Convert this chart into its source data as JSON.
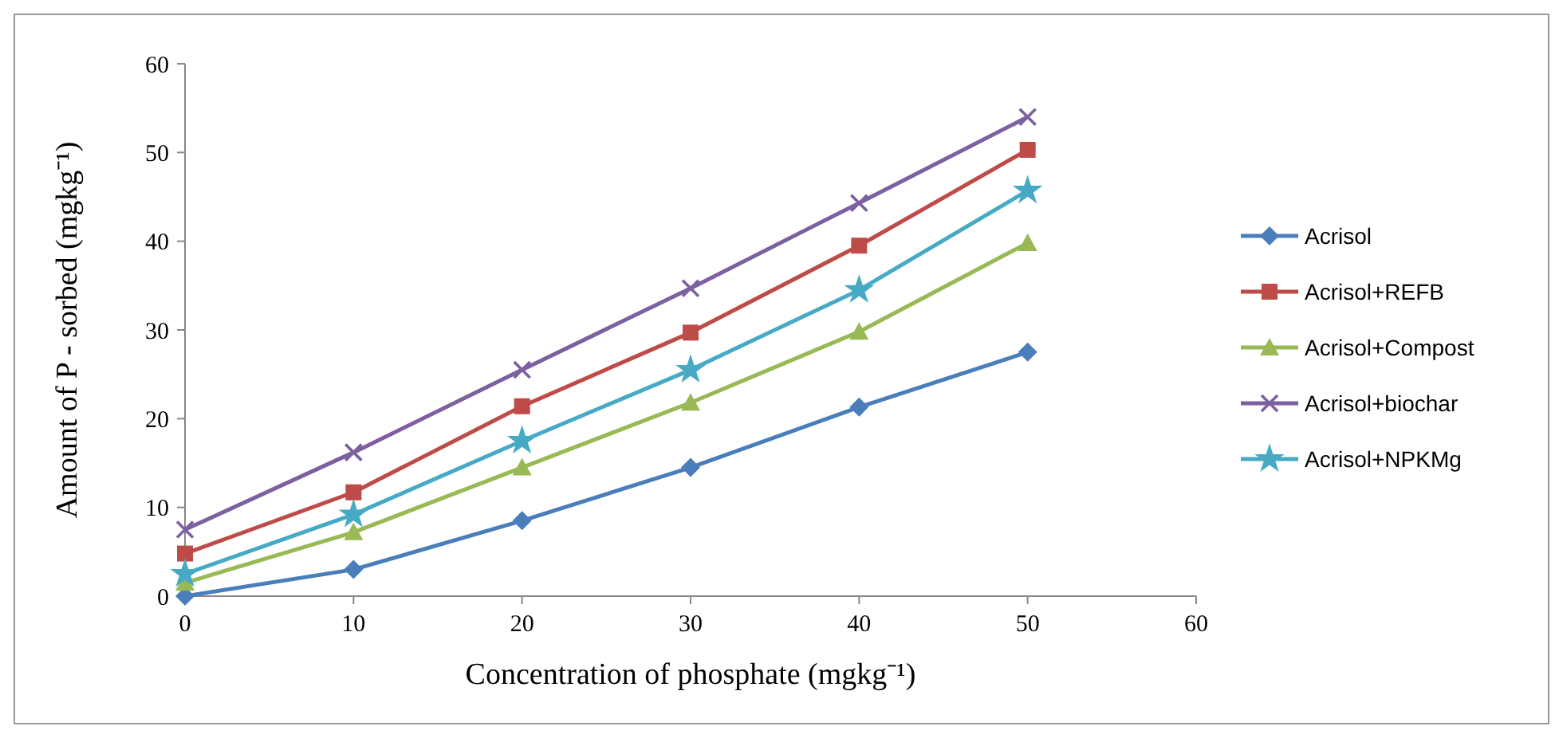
{
  "chart_data": {
    "type": "line",
    "xlabel": "Concentration of phosphate (mgkg⁻¹)",
    "ylabel": "Amount of P - sorbed (mgkg⁻¹)",
    "x": [
      0,
      10,
      20,
      30,
      40,
      50
    ],
    "xlim": [
      0,
      60
    ],
    "xticks": [
      0,
      10,
      20,
      30,
      40,
      50,
      60
    ],
    "ylim": [
      0,
      60
    ],
    "yticks": [
      0,
      10,
      20,
      30,
      40,
      50,
      60
    ],
    "grid": false,
    "legend": "right",
    "series": [
      {
        "name": "Acrisol",
        "color": "#4a7ebb",
        "marker": "diamond",
        "values": [
          0,
          3,
          8.5,
          14.5,
          21.3,
          27.5
        ]
      },
      {
        "name": "Acrisol+REFB",
        "color": "#be4b48",
        "marker": "square",
        "values": [
          4.8,
          11.7,
          21.4,
          29.7,
          39.5,
          50.3
        ]
      },
      {
        "name": "Acrisol+Compost",
        "color": "#98b954",
        "marker": "triangle",
        "values": [
          1.5,
          7.2,
          14.5,
          21.8,
          29.8,
          39.8
        ]
      },
      {
        "name": "Acrisol+biochar",
        "color": "#7d60a0",
        "marker": "cross",
        "values": [
          7.5,
          16.2,
          25.5,
          34.7,
          44.3,
          54
        ]
      },
      {
        "name": "Acrisol+NPKMg",
        "color": "#46aac5",
        "marker": "star",
        "values": [
          2.5,
          9.2,
          17.5,
          25.5,
          34.5,
          45.7
        ]
      }
    ]
  }
}
